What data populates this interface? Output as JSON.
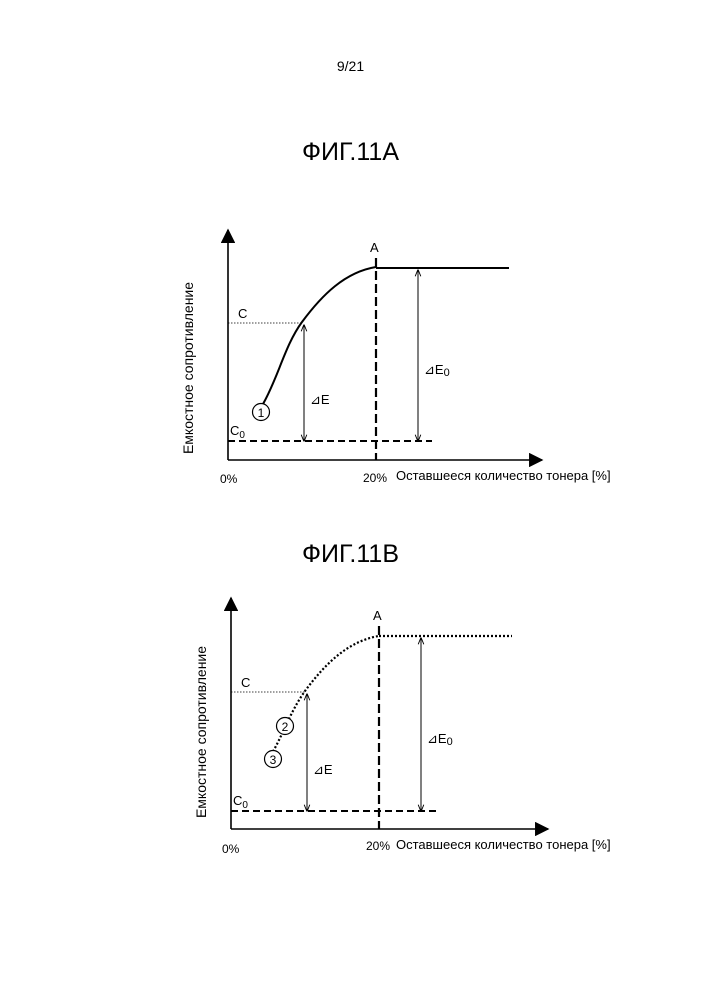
{
  "page_number": "9/21",
  "figures": [
    {
      "title": "ФИГ.11A",
      "y_label": "Емкостное сопротивление",
      "x_label": "Оставшееся количество тонера [%]",
      "x_tick_0": "0%",
      "x_tick_20": "20%",
      "label_A": "A",
      "label_C": "C",
      "label_C0_main": "C",
      "label_C0_sub": "0",
      "label_dE": "⊿E",
      "label_dE0_main": "⊿E",
      "label_dE0_sub": "0",
      "markers": [
        "1"
      ],
      "curve_style": "solid"
    },
    {
      "title": "ФИГ.11B",
      "y_label": "Емкостное сопротивление",
      "x_label": "Оставшееся количество тонера [%]",
      "x_tick_0": "0%",
      "x_tick_20": "20%",
      "label_A": "A",
      "label_C": "C",
      "label_C0_main": "C",
      "label_C0_sub": "0",
      "label_dE": "⊿E",
      "label_dE0_main": "⊿E",
      "label_dE0_sub": "0",
      "markers": [
        "2",
        "3"
      ],
      "curve_style": "dotted"
    }
  ]
}
